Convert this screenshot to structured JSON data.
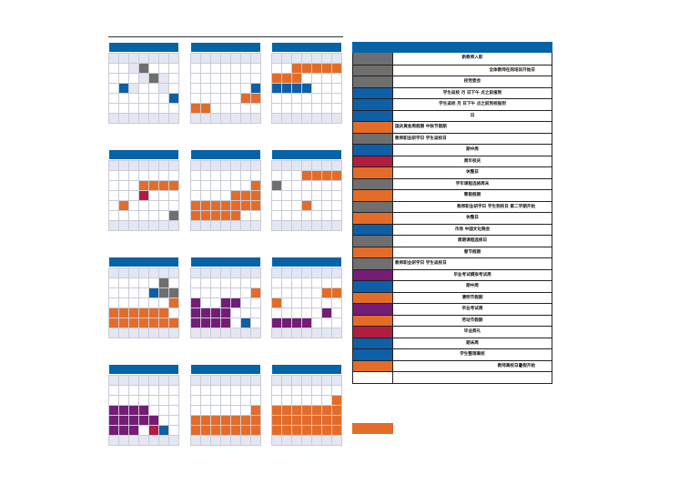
{
  "colors": {
    "header": "#0563a8",
    "orange": "#e46c29",
    "blue": "#0e5fa6",
    "gray": "#6f6f6f",
    "red": "#b11d3f",
    "purple": "#741d76",
    "weekend": "#e4e7f1"
  },
  "months": [
    {
      "rows": [
        "..wg...",
        "...wgw.",
        ".bw..w.",
        "......b",
        "......."
      ]
    },
    {
      "rows": [
        ".......",
        ".......",
        "......b",
        ".....oo",
        "oo....."
      ]
    },
    {
      "rows": [
        "..ooooo",
        "ooo....",
        "bbbb...",
        ".......",
        "......."
      ]
    },
    {
      "rows": [
        ".......",
        "...oooo",
        "...r...",
        ".o.....",
        "......g"
      ]
    },
    {
      "rows": [
        ".......",
        "......o",
        "....ooo",
        "ooooooo",
        "ooooo.."
      ]
    },
    {
      "rows": [
        "...oooo",
        "g......",
        ".......",
        "...o...",
        "......."
      ]
    },
    {
      "rows": [
        ".....g.",
        "....bgg",
        "......o",
        "oooooo.",
        "ooooooo"
      ]
    },
    {
      "rows": [
        ".......",
        "......o",
        "p..pp..",
        "pppp...",
        "pppp.b."
      ]
    },
    {
      "rows": [
        ".......",
        ".....oo",
        "o......",
        ".....p.",
        "pppp..."
      ]
    },
    {
      "rows": [
        ".......",
        ".......",
        "pppp...",
        "ppppp..",
        "ppp.rb."
      ]
    },
    {
      "rows": [
        ".......",
        ".......",
        "......o",
        "ooooooo",
        "ooooooo"
      ]
    },
    {
      "rows": [
        ".......",
        "......o",
        "ooooooo",
        "ooooooo",
        "ooooooo"
      ]
    }
  ],
  "legend": [
    {
      "color": "gray",
      "label": "新教师入职",
      "align": "c"
    },
    {
      "color": "gray",
      "label": "全体教师在岗培训开始日",
      "align": "r"
    },
    {
      "color": "gray",
      "label": "校党委会",
      "align": "c"
    },
    {
      "color": "blue",
      "label": "学生返校 月 日下午 点之前报到",
      "align": "c"
    },
    {
      "color": "blue",
      "label": "学生返校 月 日下午 点之前到校报到",
      "align": "c"
    },
    {
      "color": "blue",
      "label": "日",
      "align": "c"
    },
    {
      "color": "orange",
      "label": "国庆黄金周假期 中秋节假期",
      "align": "l"
    },
    {
      "color": "gray",
      "label": "教师职业研学日 学生返校日",
      "align": "l"
    },
    {
      "color": "blue",
      "label": "期中周",
      "align": "c"
    },
    {
      "color": "red",
      "label": "周年校庆",
      "align": "c"
    },
    {
      "color": "orange",
      "label": "休整日",
      "align": "c"
    },
    {
      "color": "gray",
      "label": "学年课程选修周末",
      "align": "c"
    },
    {
      "color": "orange",
      "label": "寒假假期",
      "align": "c"
    },
    {
      "color": "gray",
      "label": "教师职业研学日 学生到校日 第二学期开始",
      "align": "r"
    },
    {
      "color": "orange",
      "label": "休整日",
      "align": "c"
    },
    {
      "color": "blue",
      "label": "市场 中国文化晚会",
      "align": "c"
    },
    {
      "color": "gray",
      "label": "周期课程选修日",
      "align": "c"
    },
    {
      "color": "orange",
      "label": "春节假期",
      "align": "c"
    },
    {
      "color": "gray",
      "label": "教师职业研学日 学生返校日",
      "align": "l"
    },
    {
      "color": "purple",
      "label": "毕业考试模拟考试周",
      "align": "c"
    },
    {
      "color": "blue",
      "label": "期中周",
      "align": "c"
    },
    {
      "color": "orange",
      "label": "清明节假期",
      "align": "c"
    },
    {
      "color": "purple",
      "label": "毕业考试周",
      "align": "c"
    },
    {
      "color": "orange",
      "label": "劳动节假期",
      "align": "c"
    },
    {
      "color": "red",
      "label": "毕业典礼",
      "align": "c"
    },
    {
      "color": "blue",
      "label": "期末周",
      "align": "c"
    },
    {
      "color": "blue",
      "label": "学生整理离校",
      "align": "c"
    },
    {
      "color": "orange",
      "label": "教师离校日暑假开始",
      "align": "r"
    },
    {
      "color": "none",
      "label": "",
      "align": "c"
    }
  ]
}
